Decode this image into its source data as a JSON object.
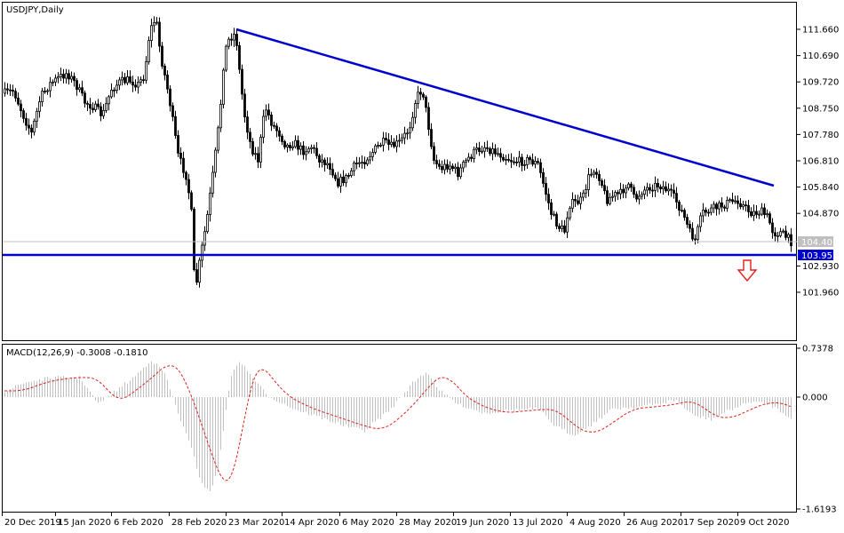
{
  "chart_data": [
    {
      "type": "candlestick",
      "title": "USDJPY,Daily",
      "symbol": "USDJPY",
      "timeframe": "Daily",
      "ylim": [
        101.3,
        112.3
      ],
      "y_ticks": [
        "111.660",
        "110.690",
        "109.720",
        "108.750",
        "107.780",
        "106.810",
        "105.840",
        "104.870",
        "102.930",
        "101.960"
      ],
      "x_ticks": [
        "20 Dec 2019",
        "15 Jan 2020",
        "6 Feb 2020",
        "28 Feb 2020",
        "23 Mar 2020",
        "14 Apr 2020",
        "6 May 2020",
        "28 May 2020",
        "19 Jun 2020",
        "13 Jul 2020",
        "4 Aug 2020",
        "26 Aug 2020",
        "17 Sep 2020",
        "9 Oct 2020"
      ],
      "current_price": "104.403",
      "support_level": "103.952",
      "annotations": [
        {
          "type": "trendline",
          "from": [
            "23 Mar 2020",
            111.6
          ],
          "to": [
            "end",
            106.3
          ]
        },
        {
          "type": "horizontal-line",
          "level": 103.952
        },
        {
          "type": "arrow-down",
          "near": "end"
        }
      ],
      "colors": {
        "candles": "#000000",
        "trendline": "#0000cd",
        "support": "#0000cd",
        "arrow": "#e0201b",
        "current_line": "#c0c0c0"
      },
      "key_points": [
        {
          "date": "20 Dec 2019",
          "close": 109.4
        },
        {
          "date": "6 Feb 2020",
          "high": 112.2
        },
        {
          "date": "28 Feb 2020",
          "low": 101.3
        },
        {
          "date": "23 Mar 2020",
          "high": 111.7
        },
        {
          "date": "28 May 2020",
          "high": 109.8
        },
        {
          "date": "13 Jul 2020",
          "low": 104.2
        },
        {
          "date": "17 Sep 2020",
          "low": 104.0
        },
        {
          "date": "end",
          "close": 104.4
        }
      ]
    },
    {
      "type": "macd",
      "title": "MACD(12,26,9) -0.3008 -0.1810",
      "params": "MACD(12,26,9)",
      "main_value": -0.3008,
      "signal_value": -0.181,
      "ylim": [
        -1.6193,
        0.7378
      ],
      "y_ticks": [
        "0.7378",
        "0.000",
        "-1.6193"
      ],
      "colors": {
        "histogram": "#c0c0c0",
        "signal": "#e0201b"
      }
    }
  ]
}
